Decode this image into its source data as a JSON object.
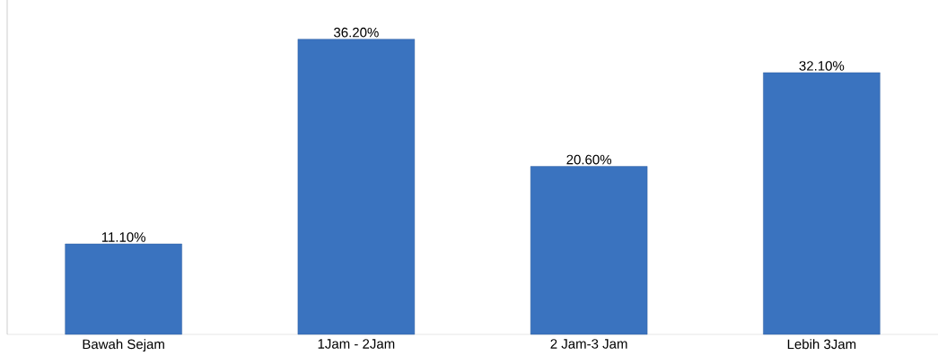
{
  "chart_data": {
    "type": "bar",
    "categories": [
      "Bawah Sejam",
      "1Jam - 2Jam",
      "2 Jam-3 Jam",
      "Lebih 3Jam"
    ],
    "values": [
      11.1,
      36.2,
      20.6,
      32.1
    ],
    "value_labels": [
      "11.10%",
      "36.20%",
      "20.60%",
      "32.10%"
    ],
    "color": "#3a73bf"
  }
}
